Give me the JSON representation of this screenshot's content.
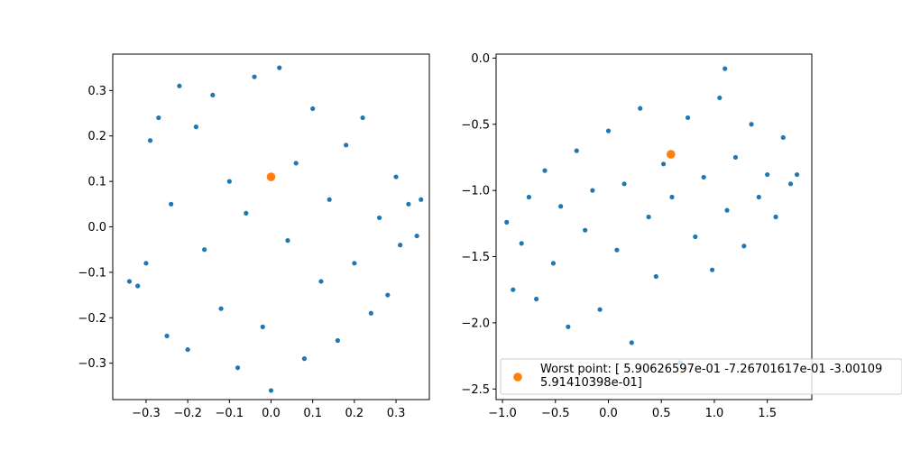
{
  "chart_data": [
    {
      "type": "scatter",
      "xlim": [
        -0.38,
        0.38
      ],
      "ylim": [
        -0.38,
        0.38
      ],
      "xticks": [
        -0.3,
        -0.2,
        -0.1,
        0.0,
        0.1,
        0.2,
        0.3
      ],
      "xtick_labels": [
        "−0.3",
        "−0.2",
        "−0.1",
        "0.0",
        "0.1",
        "0.2",
        "0.3"
      ],
      "yticks": [
        -0.3,
        -0.2,
        -0.1,
        0.0,
        0.1,
        0.2,
        0.3
      ],
      "ytick_labels": [
        "−0.3",
        "−0.2",
        "−0.1",
        "0.0",
        "0.1",
        "0.2",
        "0.3"
      ],
      "grid": false,
      "series": [
        {
          "points": [
            [
              -0.34,
              -0.12
            ],
            [
              -0.32,
              -0.13
            ],
            [
              -0.3,
              -0.08
            ],
            [
              -0.29,
              0.19
            ],
            [
              -0.27,
              0.24
            ],
            [
              -0.25,
              -0.24
            ],
            [
              -0.24,
              0.05
            ],
            [
              -0.22,
              0.31
            ],
            [
              -0.2,
              -0.27
            ],
            [
              -0.18,
              0.22
            ],
            [
              -0.16,
              -0.05
            ],
            [
              -0.14,
              0.29
            ],
            [
              -0.12,
              -0.18
            ],
            [
              -0.1,
              0.1
            ],
            [
              -0.08,
              -0.31
            ],
            [
              -0.06,
              0.03
            ],
            [
              -0.04,
              0.33
            ],
            [
              -0.02,
              -0.22
            ],
            [
              0.0,
              -0.36
            ],
            [
              0.02,
              0.35
            ],
            [
              0.04,
              -0.03
            ],
            [
              0.06,
              0.14
            ],
            [
              0.08,
              -0.29
            ],
            [
              0.1,
              0.26
            ],
            [
              0.12,
              -0.12
            ],
            [
              0.14,
              0.06
            ],
            [
              0.16,
              -0.25
            ],
            [
              0.18,
              0.18
            ],
            [
              0.2,
              -0.08
            ],
            [
              0.22,
              0.24
            ],
            [
              0.24,
              -0.19
            ],
            [
              0.26,
              0.02
            ],
            [
              0.28,
              -0.15
            ],
            [
              0.3,
              0.11
            ],
            [
              0.31,
              -0.04
            ],
            [
              0.33,
              0.05
            ],
            [
              0.35,
              -0.02
            ],
            [
              0.36,
              0.06
            ]
          ],
          "color": "#1f77b4"
        },
        {
          "points": [
            [
              0.0,
              0.11
            ]
          ],
          "color": "#ff7f0e"
        }
      ]
    },
    {
      "type": "scatter",
      "xlim": [
        -1.06,
        1.92
      ],
      "ylim": [
        -2.58,
        0.03
      ],
      "xticks": [
        -1.0,
        -0.5,
        0.0,
        0.5,
        1.0,
        1.5
      ],
      "xtick_labels": [
        "−1.0",
        "−0.5",
        "0.0",
        "0.5",
        "1.0",
        "1.5"
      ],
      "yticks": [
        0.0,
        -0.5,
        -1.0,
        -1.5,
        -2.0,
        -2.5
      ],
      "ytick_labels": [
        "0.0",
        "−0.5",
        "−1.0",
        "−1.5",
        "−2.0",
        "−2.5"
      ],
      "grid": false,
      "legend_position": "lower-right",
      "legend_entries": [
        {
          "label_lines": [
            "Worst point: [ 5.90626597e-01 -7.26701617e-01 -3.00109",
            "  5.91410398e-01]"
          ],
          "color": "#ff7f0e"
        }
      ],
      "series": [
        {
          "points": [
            [
              -0.96,
              -1.24
            ],
            [
              -0.9,
              -1.75
            ],
            [
              -0.82,
              -1.4
            ],
            [
              -0.75,
              -1.05
            ],
            [
              -0.68,
              -1.82
            ],
            [
              -0.6,
              -0.85
            ],
            [
              -0.52,
              -1.55
            ],
            [
              -0.45,
              -1.12
            ],
            [
              -0.38,
              -2.03
            ],
            [
              -0.3,
              -0.7
            ],
            [
              -0.22,
              -1.3
            ],
            [
              -0.15,
              -1.0
            ],
            [
              -0.08,
              -1.9
            ],
            [
              0.0,
              -0.55
            ],
            [
              0.08,
              -1.45
            ],
            [
              0.15,
              -0.95
            ],
            [
              0.22,
              -2.15
            ],
            [
              0.3,
              -0.38
            ],
            [
              0.38,
              -1.2
            ],
            [
              0.45,
              -1.65
            ],
            [
              0.52,
              -0.8
            ],
            [
              0.6,
              -1.05
            ],
            [
              0.68,
              -2.3
            ],
            [
              0.75,
              -0.45
            ],
            [
              0.82,
              -1.35
            ],
            [
              0.9,
              -0.9
            ],
            [
              0.98,
              -1.6
            ],
            [
              1.05,
              -0.3
            ],
            [
              1.12,
              -1.15
            ],
            [
              1.2,
              -0.75
            ],
            [
              1.28,
              -1.42
            ],
            [
              1.35,
              -0.5
            ],
            [
              1.42,
              -1.05
            ],
            [
              1.5,
              -0.88
            ],
            [
              1.58,
              -1.2
            ],
            [
              1.65,
              -0.6
            ],
            [
              1.72,
              -0.95
            ],
            [
              1.78,
              -0.88
            ],
            [
              1.1,
              -0.08
            ],
            [
              0.2,
              -2.45
            ]
          ],
          "color": "#1f77b4"
        },
        {
          "points": [
            [
              0.59,
              -0.727
            ]
          ],
          "color": "#ff7f0e"
        }
      ]
    }
  ]
}
